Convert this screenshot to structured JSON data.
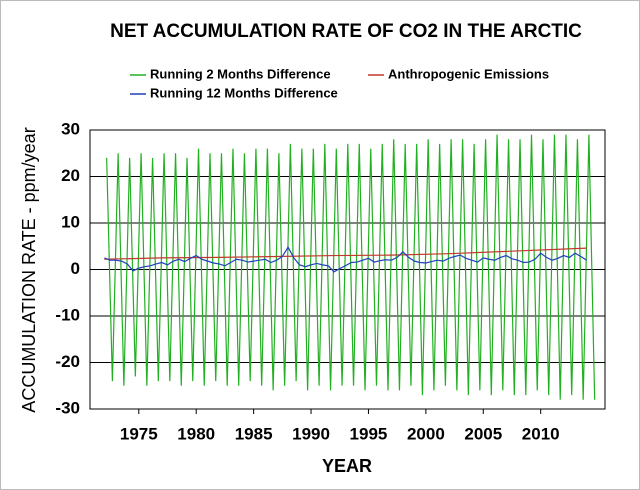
{
  "chart_data": {
    "type": "line",
    "title": "NET ACCUMULATION RATE OF CO2 IN THE ARCTIC",
    "x_label": "YEAR",
    "y_label": "ACCUMULATION RATE - ppm/year",
    "xlim": [
      1970.75,
      2015.6
    ],
    "xticks": [
      1975,
      1980,
      1985,
      1990,
      1995,
      2000,
      2005,
      2010
    ],
    "ylim": [
      -30,
      30
    ],
    "yticks": [
      -30,
      -20,
      -10,
      0,
      10,
      20,
      30
    ],
    "grid": true,
    "legend": "top",
    "series": [
      {
        "name": "Running 2 Months Difference",
        "color": "#22b022",
        "x": [
          1972.2,
          1972.7,
          1973.2,
          1973.7,
          1974.2,
          1974.7,
          1975.2,
          1975.7,
          1976.2,
          1976.7,
          1977.2,
          1977.7,
          1978.2,
          1978.7,
          1979.2,
          1979.7,
          1980.2,
          1980.7,
          1981.2,
          1981.7,
          1982.2,
          1982.7,
          1983.2,
          1983.7,
          1984.2,
          1984.7,
          1985.2,
          1985.7,
          1986.2,
          1986.7,
          1987.2,
          1987.7,
          1988.2,
          1988.7,
          1989.2,
          1989.7,
          1990.2,
          1990.7,
          1991.2,
          1991.7,
          1992.2,
          1992.7,
          1993.2,
          1993.7,
          1994.2,
          1994.7,
          1995.2,
          1995.7,
          1996.2,
          1996.7,
          1997.2,
          1997.7,
          1998.2,
          1998.7,
          1999.2,
          1999.7,
          2000.2,
          2000.7,
          2001.2,
          2001.7,
          2002.2,
          2002.7,
          2003.2,
          2003.7,
          2004.2,
          2004.7,
          2005.2,
          2005.7,
          2006.2,
          2006.7,
          2007.2,
          2007.7,
          2008.2,
          2008.7,
          2009.2,
          2009.7,
          2010.2,
          2010.7,
          2011.2,
          2011.7,
          2012.2,
          2012.7,
          2013.2,
          2013.7,
          2014.2,
          2014.7
        ],
        "values": [
          24,
          -24,
          25,
          -25,
          24,
          -23,
          25,
          -25,
          24,
          -24,
          25,
          -24,
          25,
          -25,
          24,
          -24,
          26,
          -25,
          25,
          -24,
          25,
          -25,
          26,
          -25,
          25,
          -24,
          26,
          -25,
          26,
          -26,
          25,
          -25,
          27,
          -24,
          26,
          -26,
          26,
          -25,
          27,
          -26,
          26,
          -25,
          27,
          -25,
          27,
          -26,
          26,
          -25,
          27,
          -26,
          28,
          -26,
          27,
          -25,
          27,
          -27,
          28,
          -26,
          27,
          -25,
          28,
          -26,
          28,
          -27,
          27,
          -26,
          28,
          -27,
          29,
          -26,
          28,
          -27,
          28,
          -27,
          29,
          -26,
          28,
          -27,
          29,
          -28,
          29,
          -27,
          28,
          -28,
          29,
          -28
        ]
      },
      {
        "name": "Anthropogenic Emissions",
        "color": "#c0392b",
        "x": [
          1972,
          1977,
          1982,
          1987,
          1992,
          1997,
          2002,
          2007,
          2014
        ],
        "values": [
          2.2,
          2.5,
          2.6,
          2.8,
          3.0,
          3.1,
          3.4,
          3.9,
          4.6
        ]
      },
      {
        "name": "Running 12 Months Difference",
        "color": "#1f3fbf",
        "x": [
          1972,
          1972.5,
          1973,
          1973.5,
          1974,
          1974.5,
          1975,
          1975.5,
          1976,
          1976.5,
          1977,
          1977.5,
          1978,
          1978.5,
          1979,
          1979.5,
          1980,
          1980.5,
          1981,
          1981.5,
          1982,
          1982.5,
          1983,
          1983.5,
          1984,
          1984.5,
          1985,
          1985.5,
          1986,
          1986.5,
          1987,
          1987.5,
          1988,
          1988.5,
          1989,
          1989.5,
          1990,
          1990.5,
          1991,
          1991.5,
          1992,
          1992.5,
          1993,
          1993.5,
          1994,
          1994.5,
          1995,
          1995.5,
          1996,
          1996.5,
          1997,
          1997.5,
          1998,
          1998.5,
          1999,
          1999.5,
          2000,
          2000.5,
          2001,
          2001.5,
          2002,
          2002.5,
          2003,
          2003.5,
          2004,
          2004.5,
          2005,
          2005.5,
          2006,
          2006.5,
          2007,
          2007.5,
          2008,
          2008.5,
          2009,
          2009.5,
          2010,
          2010.5,
          2011,
          2011.5,
          2012,
          2012.5,
          2013,
          2013.5,
          2014
        ],
        "values": [
          2.5,
          2.0,
          2.0,
          1.8,
          1.2,
          -0.3,
          0.3,
          0.6,
          0.8,
          1.2,
          1.5,
          1.0,
          1.8,
          2.2,
          1.7,
          2.4,
          3.0,
          2.2,
          1.8,
          1.4,
          1.2,
          0.8,
          1.5,
          2.2,
          2.0,
          1.6,
          1.8,
          2.0,
          2.2,
          1.5,
          2.0,
          2.8,
          4.8,
          2.5,
          1.0,
          0.6,
          1.0,
          1.3,
          1.0,
          0.8,
          -0.5,
          0.2,
          0.8,
          1.5,
          1.6,
          2.0,
          2.4,
          1.6,
          1.9,
          2.1,
          2.0,
          2.6,
          3.8,
          2.6,
          1.8,
          1.5,
          1.4,
          1.7,
          2.0,
          1.8,
          2.4,
          2.8,
          3.1,
          2.4,
          2.0,
          1.6,
          2.5,
          2.2,
          2.0,
          2.6,
          3.0,
          2.3,
          2.0,
          1.5,
          1.6,
          2.2,
          3.5,
          2.6,
          2.0,
          2.4,
          3.0,
          2.6,
          3.5,
          2.8,
          2.0
        ]
      }
    ]
  }
}
